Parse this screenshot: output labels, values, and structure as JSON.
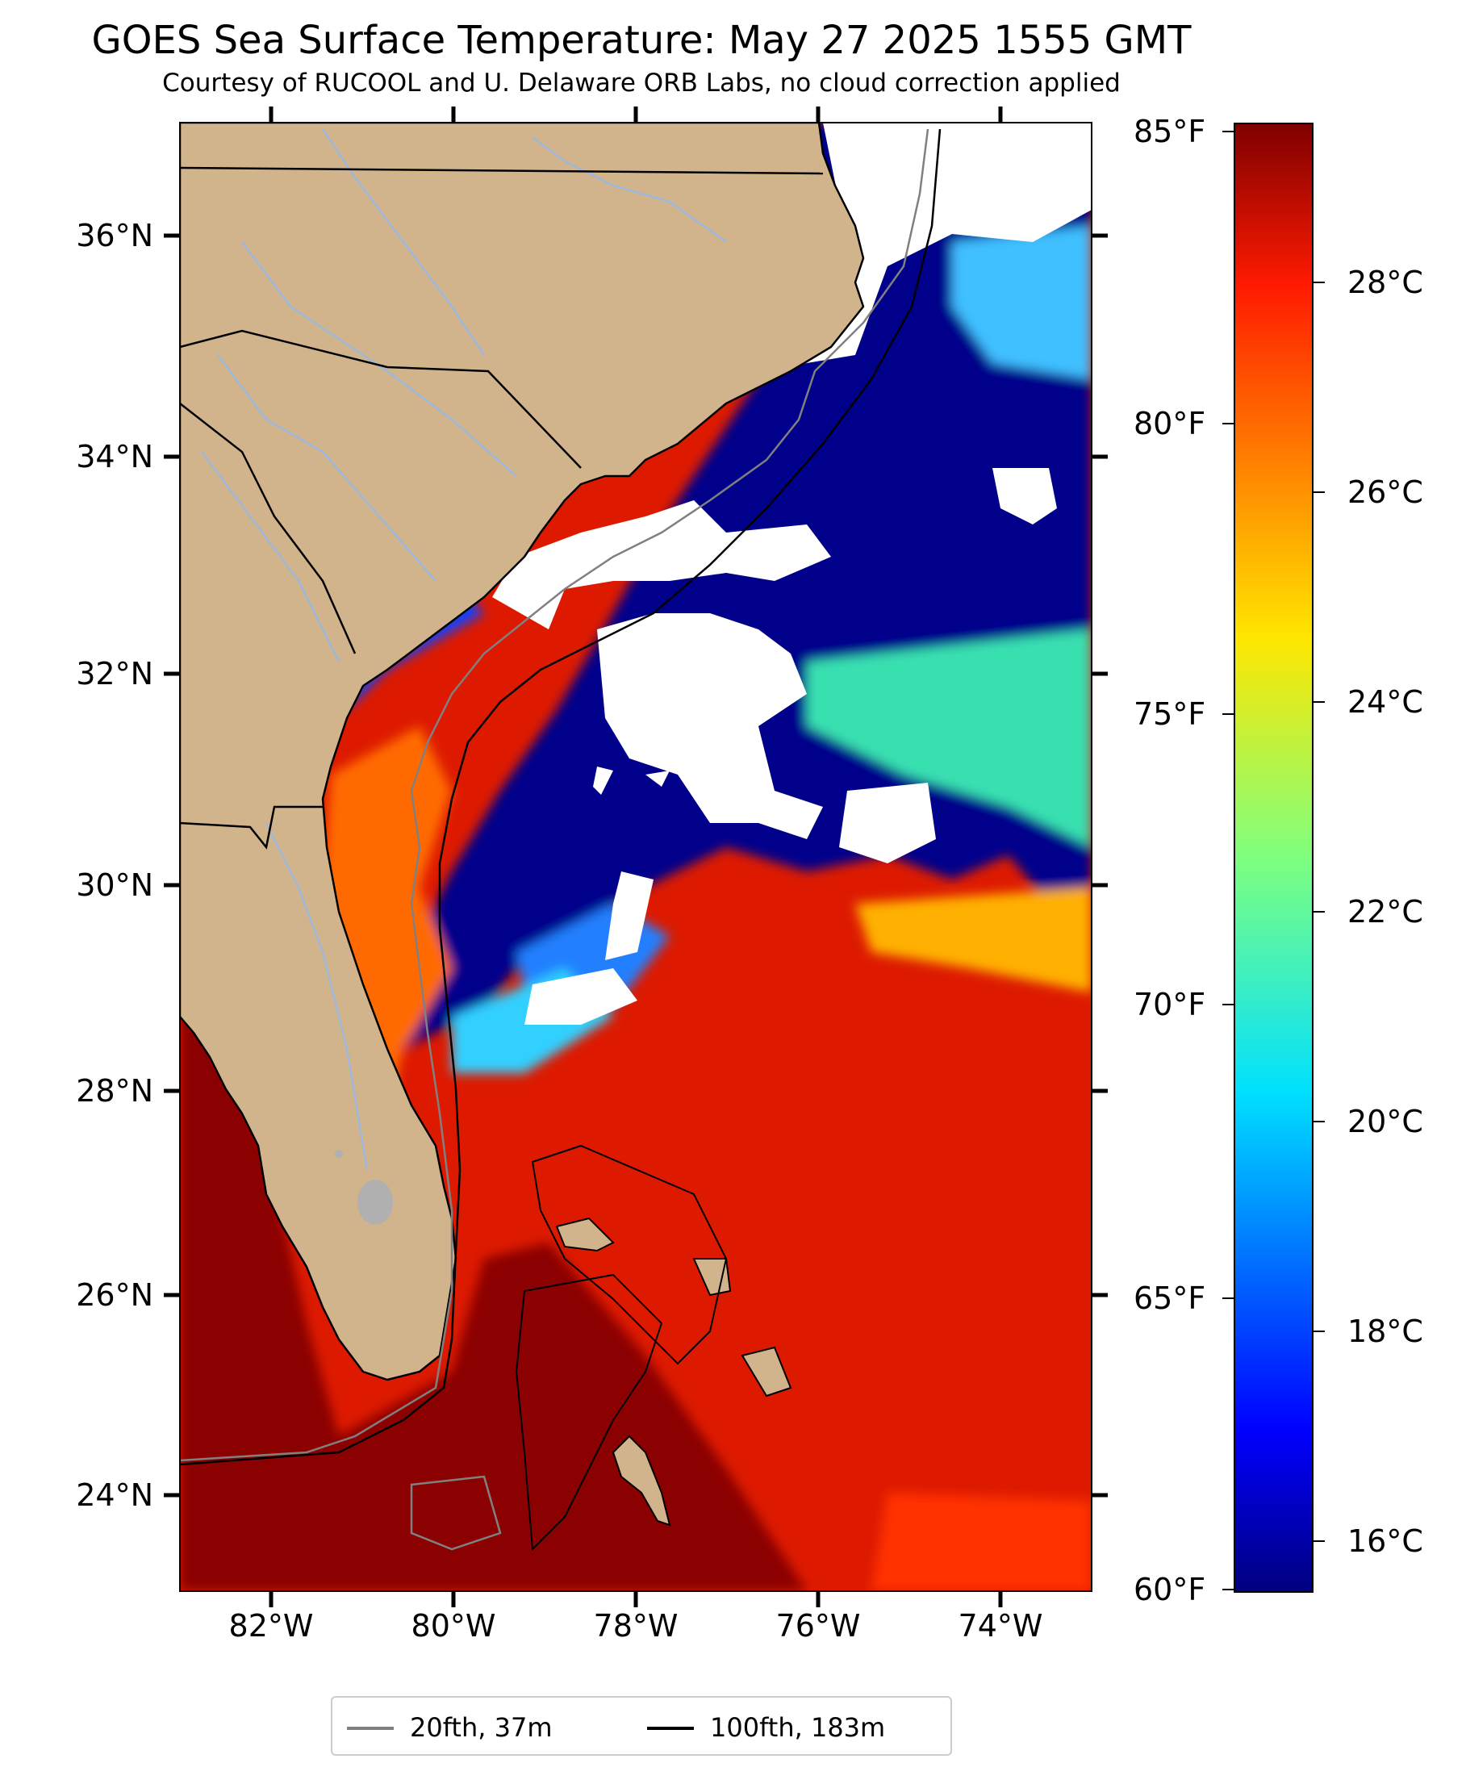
{
  "title": "GOES Sea Surface Temperature: May 27 2025 1555 GMT",
  "subtitle": "Courtesy of RUCOOL and U. Delaware ORB Labs, no cloud correction applied",
  "map": {
    "extent": {
      "lon_min": -83.0,
      "lon_max": -73.0,
      "lat_min": 23.1,
      "lat_max": 37.0
    },
    "lat_ticks": [
      "36°N",
      "34°N",
      "32°N",
      "30°N",
      "28°N",
      "26°N",
      "24°N"
    ],
    "lon_ticks": [
      "82°W",
      "80°W",
      "78°W",
      "76°W",
      "74°W"
    ],
    "colors": {
      "land": "#d2b48c",
      "cloud": "#ffffff",
      "cold": "#00008b",
      "warm": "#dd1a00",
      "hot": "#8b0000",
      "isobath_20": "#808080",
      "isobath_100": "#000000",
      "rivers": "#9db8dc"
    }
  },
  "colorbar": {
    "colormap": "jet",
    "range_f": [
      60,
      85
    ],
    "fahrenheit_labels": [
      "85°F",
      "80°F",
      "75°F",
      "70°F",
      "65°F",
      "60°F"
    ],
    "celsius_labels": [
      "28°C",
      "26°C",
      "24°C",
      "22°C",
      "20°C",
      "18°C",
      "16°C"
    ]
  },
  "legend": {
    "items": [
      {
        "label": "20fth, 37m",
        "color": "#808080"
      },
      {
        "label": "100fth, 183m",
        "color": "#000000"
      }
    ]
  }
}
